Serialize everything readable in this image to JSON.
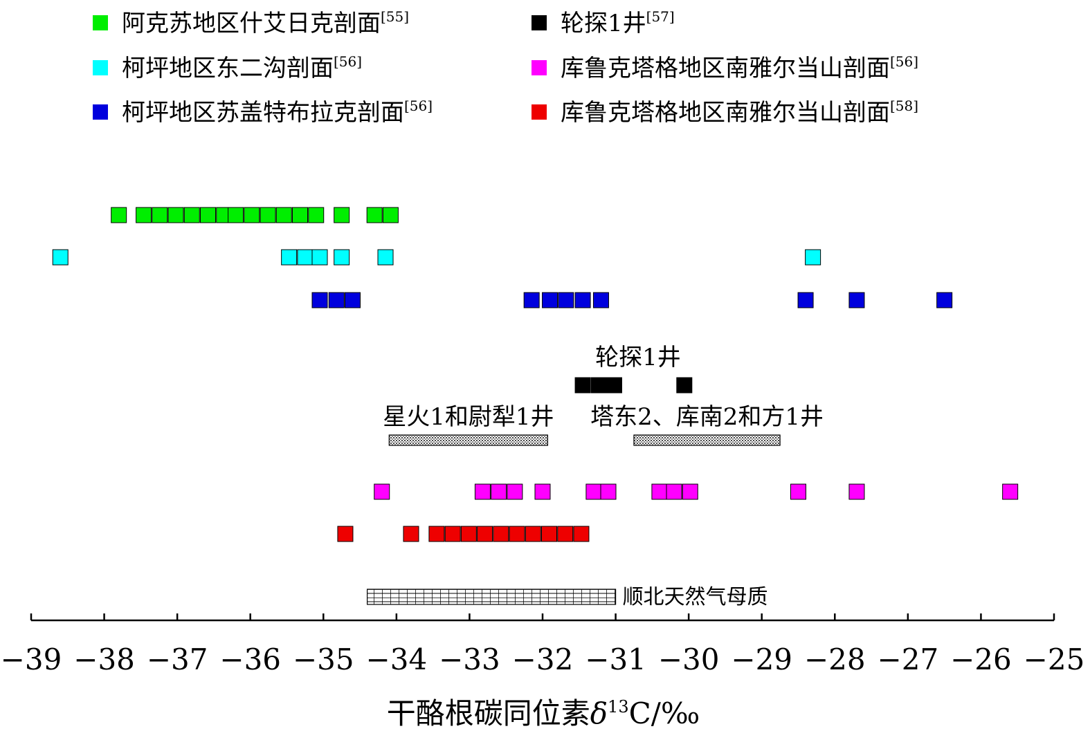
{
  "chart_data": {
    "type": "scatter",
    "title": "",
    "xlabel": "干酪根碳同位素δ13C/‰",
    "xlabel_parts": {
      "pre": "干酪根碳同位素",
      "delta": "δ",
      "sup": "13",
      "post": "C/‰"
    },
    "xlim": [
      -39,
      -25
    ],
    "x_ticks": [
      -39,
      -38,
      -37,
      -36,
      -35,
      -34,
      -33,
      -32,
      -31,
      -30,
      -29,
      -28,
      -27,
      -26,
      -25
    ],
    "x_tick_labels": [
      "−39",
      "−38",
      "−37",
      "−36",
      "−35",
      "−34",
      "−33",
      "−32",
      "−31",
      "−30",
      "−29",
      "−28",
      "−27",
      "−26",
      "−25"
    ],
    "grid": false,
    "legend_position": "top",
    "legend": [
      {
        "label": "阿克苏地区什艾日克剖面",
        "ref": "[55]",
        "color": "#00ee00"
      },
      {
        "label": "轮探1井",
        "ref": "[57]",
        "color": "#000000"
      },
      {
        "label": "柯坪地区东二沟剖面",
        "ref": "[56]",
        "color": "#00ffff"
      },
      {
        "label": "库鲁克塔格地区南雅尔当山剖面",
        "ref": "[56]",
        "color": "#ff00ff"
      },
      {
        "label": "柯坪地区苏盖特布拉克剖面",
        "ref": "[56]",
        "color": "#0000dd"
      },
      {
        "label": "库鲁克塔格地区南雅尔当山剖面",
        "ref": "[58]",
        "color": "#ee0000"
      }
    ],
    "series": [
      {
        "name": "阿克苏地区什艾日克剖面",
        "color": "#00ee00",
        "values": [
          -37.8,
          -37.46,
          -37.24,
          -37.02,
          -36.8,
          -36.58,
          -36.36,
          -36.2,
          -35.98,
          -35.76,
          -35.54,
          -35.32,
          -35.1,
          -34.75,
          -34.3,
          -34.08
        ]
      },
      {
        "name": "柯坪地区东二沟剖面",
        "color": "#00ffff",
        "values": [
          -38.6,
          -35.47,
          -35.25,
          -35.05,
          -34.75,
          -34.15,
          -28.3
        ]
      },
      {
        "name": "柯坪地区苏盖特布拉克剖面",
        "color": "#0000dd",
        "values": [
          -35.05,
          -34.82,
          -34.6,
          -32.15,
          -31.9,
          -31.68,
          -31.45,
          -31.2,
          -28.4,
          -27.7,
          -26.5
        ]
      },
      {
        "name": "轮探1井",
        "color": "#000000",
        "values": [
          -31.45,
          -31.23,
          -31.02,
          -30.06
        ]
      },
      {
        "name": "库鲁克塔格地区南雅尔当山剖面[56]",
        "color": "#ff00ff",
        "values": [
          -34.2,
          -32.82,
          -32.6,
          -32.38,
          -32.0,
          -31.3,
          -31.1,
          -30.4,
          -30.2,
          -29.98,
          -28.5,
          -27.7,
          -25.6
        ]
      },
      {
        "name": "库鲁克塔格地区南雅尔当山剖面[58]",
        "color": "#ee0000",
        "values": [
          -34.7,
          -33.8,
          -33.45,
          -33.23,
          -33.01,
          -32.79,
          -32.57,
          -32.35,
          -32.13,
          -31.91,
          -31.69,
          -31.47
        ]
      }
    ],
    "ranges": [
      {
        "label": "星火1和尉犁1井",
        "from": -34.1,
        "to": -31.93,
        "pattern": "dots"
      },
      {
        "label": "塔东2、库南2和方1井",
        "from": -30.75,
        "to": -28.75,
        "pattern": "dots"
      },
      {
        "label": "顺北天然气母质",
        "from": -34.4,
        "to": -31.0,
        "pattern": "grid"
      }
    ],
    "annotations": [
      {
        "text": "轮探1井"
      }
    ]
  }
}
